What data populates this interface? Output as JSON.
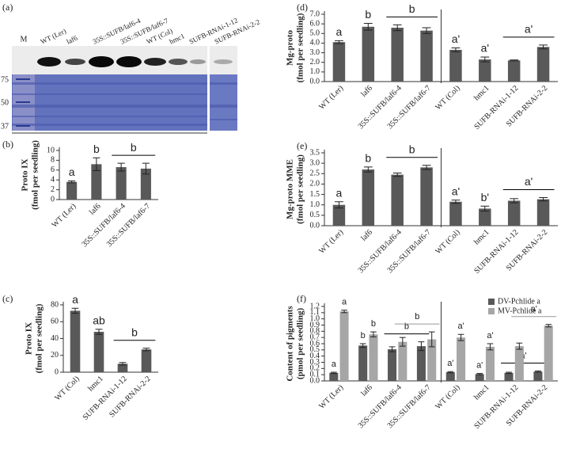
{
  "panel_a": {
    "label": "(a)",
    "marker_lane": "M",
    "lanes": [
      "WT (Ler)",
      "laf6",
      "35S::SUFB/laf6-4",
      "35S::SUFB/laf6-7",
      "WT (Col)",
      "hmc1",
      "SUFB-RNAi-1-12",
      "SUFB-RNAi-2-2"
    ],
    "size_markers": [
      75,
      50,
      37
    ]
  },
  "chart_data": [
    {
      "type": "bar",
      "panel": "(b)",
      "ylabel": [
        "Proto IX",
        "(fmol per seedling)"
      ],
      "categories": [
        "WT (Ler)",
        "laf6",
        "35S::SUFB/laf6-4",
        "35S::SUFB/laf6-7"
      ],
      "series": [
        {
          "color": "#595959",
          "letter_color": "#000000",
          "values": [
            3.6,
            7.2,
            6.6,
            6.3
          ],
          "errors": [
            0.2,
            1.3,
            0.8,
            1.1
          ],
          "letters": [
            "a",
            "b",
            null,
            null
          ],
          "groups": [
            {
              "label": "b",
              "span": [
                2,
                3
              ]
            }
          ]
        }
      ],
      "ylim": [
        0,
        10
      ],
      "yticks": [
        0,
        2,
        4,
        6,
        8,
        10
      ]
    },
    {
      "type": "bar",
      "panel": "(c)",
      "ylabel": [
        "Proto IX",
        "(fmol per seedling)"
      ],
      "categories": [
        "WT (Col)",
        "hmc1",
        "SUFB-RNAi-1-12",
        "SUFB-RNAi-2-2"
      ],
      "series": [
        {
          "color": "#595959",
          "letter_color": "#000000",
          "values": [
            73,
            48,
            10,
            27
          ],
          "errors": [
            3,
            3,
            1.5,
            1.5
          ],
          "letters": [
            "a",
            "ab",
            null,
            null
          ],
          "groups": [
            {
              "label": "b",
              "span": [
                2,
                3
              ]
            }
          ]
        }
      ],
      "ylim": [
        0,
        80
      ],
      "yticks": [
        0,
        20,
        40,
        60,
        80
      ]
    },
    {
      "type": "bar",
      "panel": "(d)",
      "ylabel": [
        "Mg-proto",
        "(fmol per seedling)"
      ],
      "categories": [
        "WT (Ler)",
        "laf6",
        "35S::SUFB/laf6-4",
        "35S::SUFB/laf6-7",
        "WT (Col)",
        "hmc1",
        "SUFB-RNAi-1-12",
        "SUFB-RNAi-2-2"
      ],
      "divider_before": 4,
      "series": [
        {
          "color": "#595959",
          "letter_color": "#000000",
          "values": [
            4.1,
            5.7,
            5.6,
            5.3,
            3.3,
            2.3,
            2.2,
            3.6
          ],
          "errors": [
            0.15,
            0.35,
            0.3,
            0.3,
            0.2,
            0.25,
            0.05,
            0.2
          ],
          "letters": [
            "a",
            "b",
            null,
            null,
            "a'",
            "a'",
            null,
            null
          ],
          "groups": [
            {
              "label": "b",
              "span": [
                2,
                3
              ]
            },
            {
              "label": "a'",
              "span": [
                6,
                7
              ]
            }
          ]
        }
      ],
      "ylim": [
        0,
        7
      ],
      "yticks": [
        {
          "value": 0,
          "label": "0.0"
        },
        {
          "value": 1,
          "label": "1.0"
        },
        {
          "value": 2,
          "label": "2.0"
        },
        {
          "value": 3,
          "label": "3.0"
        },
        {
          "value": 4,
          "label": "4.0"
        },
        {
          "value": 5,
          "label": "5.0"
        },
        {
          "value": 6,
          "label": "6.0"
        },
        {
          "value": 7,
          "label": "7.0"
        }
      ]
    },
    {
      "type": "bar",
      "panel": "(e)",
      "ylabel": [
        "Mg-proto MME",
        "(fmol per seedling)"
      ],
      "categories": [
        "WT (Ler)",
        "laf6",
        "35S::SUFB/laf6-4",
        "35S::SUFB/laf6-7",
        "WT (Col)",
        "hmc1",
        "SUFB-RNAi-1-12",
        "SUFB-RNAi-2-2"
      ],
      "divider_before": 4,
      "series": [
        {
          "color": "#595959",
          "letter_color": "#000000",
          "values": [
            1.0,
            2.7,
            2.45,
            2.8,
            1.15,
            0.82,
            1.2,
            1.27
          ],
          "errors": [
            0.15,
            0.12,
            0.08,
            0.1,
            0.08,
            0.12,
            0.1,
            0.08
          ],
          "letters": [
            "a",
            "b",
            null,
            null,
            "a'",
            "b'",
            null,
            null
          ],
          "groups": [
            {
              "label": "b",
              "span": [
                2,
                3
              ]
            },
            {
              "label": "a'",
              "span": [
                6,
                7
              ]
            }
          ]
        }
      ],
      "ylim": [
        0,
        3.5
      ],
      "yticks": [
        {
          "value": 0,
          "label": "0.0"
        },
        0.5,
        {
          "value": 1,
          "label": "1.0"
        },
        1.5,
        {
          "value": 2,
          "label": "2.0"
        },
        2.5,
        {
          "value": 3,
          "label": "3.0"
        },
        3.5
      ]
    },
    {
      "type": "bar",
      "panel": "(f)",
      "ylabel": [
        "Content of pigments",
        "(pmol per seedling)"
      ],
      "categories": [
        "WT (Ler)",
        "laf6",
        "35S::SUFB/laf6-4",
        "35S::SUFB/laf6-7",
        "WT (Col)",
        "hmc1",
        "SUFB-RNAi-1-12",
        "SUFB-RNAi-2-2"
      ],
      "divider_before": 4,
      "legend": "top-right",
      "series": [
        {
          "name": "DV-Pchlide a",
          "color": "#595959",
          "letter_color": "#000000",
          "values": [
            0.13,
            0.57,
            0.51,
            0.56,
            0.14,
            0.11,
            0.13,
            0.15
          ],
          "errors": [
            0.01,
            0.03,
            0.04,
            0.07,
            0.01,
            0.01,
            0.01,
            0.01
          ],
          "letters": [
            "a",
            "b",
            null,
            null,
            "a'",
            "a'",
            null,
            null
          ],
          "groups": [
            {
              "label": "b",
              "span": [
                2,
                3
              ]
            },
            {
              "label": "a'",
              "span": [
                6,
                7
              ]
            }
          ]
        },
        {
          "name": "MV-Pchlide a",
          "color": "#a6a6a6",
          "letter_color": "#999999",
          "values": [
            1.12,
            0.75,
            0.63,
            0.67,
            0.7,
            0.55,
            0.56,
            0.89
          ],
          "errors": [
            0.02,
            0.04,
            0.07,
            0.12,
            0.05,
            0.05,
            0.05,
            0.02
          ],
          "letters": [
            "a",
            "b",
            null,
            null,
            "a'",
            "a'",
            null,
            null
          ],
          "groups": [
            {
              "label": "b",
              "span": [
                2,
                3
              ]
            },
            {
              "label": "a'",
              "span": [
                6,
                7
              ]
            }
          ]
        }
      ],
      "ylim": [
        0,
        1.2
      ],
      "yticks": [
        {
          "value": 0,
          "label": "0.0"
        },
        0.1,
        0.2,
        0.3,
        0.4,
        0.5,
        0.6,
        0.7,
        0.8,
        0.9,
        {
          "value": 1,
          "label": "1.0"
        },
        1.1,
        1.2
      ]
    }
  ]
}
